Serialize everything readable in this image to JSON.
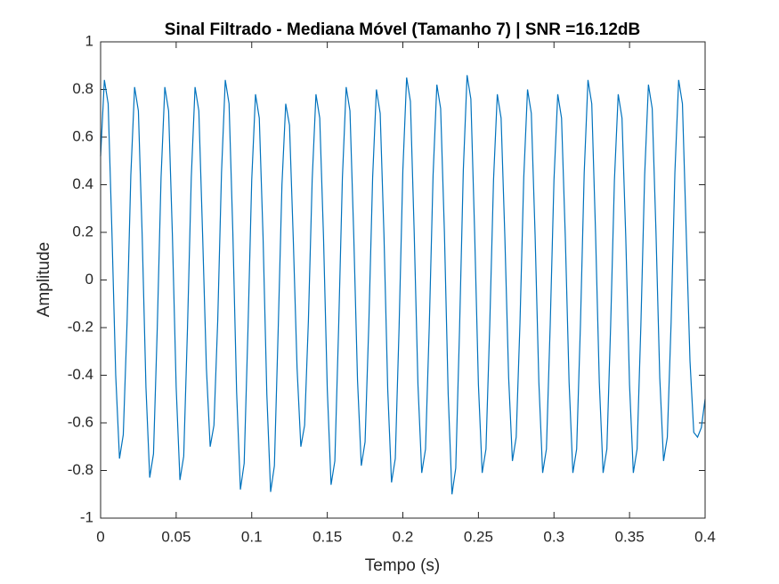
{
  "chart_data": {
    "type": "line",
    "title": "Sinal Filtrado - Mediana Móvel (Tamanho 7) | SNR =16.12dB",
    "xlabel": "Tempo (s)",
    "ylabel": "Amplitude",
    "xlim": [
      0,
      0.4
    ],
    "ylim": [
      -1,
      1
    ],
    "xticks": [
      0,
      0.05,
      0.1,
      0.15,
      0.2,
      0.25,
      0.3,
      0.35,
      0.4
    ],
    "yticks": [
      -1,
      -0.8,
      -0.6,
      -0.4,
      -0.2,
      0,
      0.2,
      0.4,
      0.6,
      0.8,
      1
    ],
    "grid": false,
    "series": [
      {
        "color": "#0072bd",
        "x": [
          0,
          0.0025,
          0.005,
          0.0075,
          0.01,
          0.0125,
          0.015,
          0.0175,
          0.02,
          0.0225,
          0.025,
          0.0275,
          0.03,
          0.0325,
          0.035,
          0.0375,
          0.04,
          0.0425,
          0.045,
          0.0475,
          0.05,
          0.0525,
          0.055,
          0.0575,
          0.06,
          0.0625,
          0.065,
          0.0675,
          0.07,
          0.0725,
          0.075,
          0.0775,
          0.08,
          0.0825,
          0.085,
          0.0875,
          0.09,
          0.0925,
          0.095,
          0.0975,
          0.1,
          0.1025,
          0.105,
          0.1075,
          0.11,
          0.1125,
          0.115,
          0.1175,
          0.12,
          0.1225,
          0.125,
          0.1275,
          0.13,
          0.1325,
          0.135,
          0.1375,
          0.14,
          0.1425,
          0.145,
          0.1475,
          0.15,
          0.1525,
          0.155,
          0.1575,
          0.16,
          0.1625,
          0.165,
          0.1675,
          0.17,
          0.1725,
          0.175,
          0.1775,
          0.18,
          0.1825,
          0.185,
          0.1875,
          0.19,
          0.1925,
          0.195,
          0.1975,
          0.2,
          0.2025,
          0.205,
          0.2075,
          0.21,
          0.2125,
          0.215,
          0.2175,
          0.22,
          0.2225,
          0.225,
          0.2275,
          0.23,
          0.2325,
          0.235,
          0.2375,
          0.24,
          0.2425,
          0.245,
          0.2475,
          0.25,
          0.2525,
          0.255,
          0.2575,
          0.26,
          0.2625,
          0.265,
          0.2675,
          0.27,
          0.2725,
          0.275,
          0.2775,
          0.28,
          0.2825,
          0.285,
          0.2875,
          0.29,
          0.2925,
          0.295,
          0.2975,
          0.3,
          0.3025,
          0.305,
          0.3075,
          0.31,
          0.3125,
          0.315,
          0.3175,
          0.32,
          0.3225,
          0.325,
          0.3275,
          0.33,
          0.3325,
          0.335,
          0.3375,
          0.34,
          0.3425,
          0.345,
          0.3475,
          0.35,
          0.3525,
          0.355,
          0.3575,
          0.36,
          0.3625,
          0.365,
          0.3675,
          0.37,
          0.3725,
          0.375,
          0.3775,
          0.38,
          0.3825,
          0.385,
          0.3875,
          0.39,
          0.3925,
          0.395,
          0.3975,
          0.4
        ],
        "values": [
          0.52,
          0.84,
          0.74,
          0.2,
          -0.4,
          -0.75,
          -0.65,
          -0.18,
          0.44,
          0.81,
          0.71,
          0.19,
          -0.45,
          -0.83,
          -0.73,
          -0.2,
          0.43,
          0.81,
          0.71,
          0.19,
          -0.45,
          -0.84,
          -0.74,
          -0.2,
          0.43,
          0.81,
          0.71,
          0.19,
          -0.37,
          -0.7,
          -0.61,
          -0.17,
          0.45,
          0.84,
          0.74,
          0.2,
          -0.47,
          -0.88,
          -0.77,
          -0.21,
          0.42,
          0.78,
          0.68,
          0.18,
          -0.48,
          -0.89,
          -0.78,
          -0.21,
          0.4,
          0.74,
          0.65,
          0.17,
          -0.37,
          -0.7,
          -0.61,
          -0.17,
          0.42,
          0.78,
          0.68,
          0.18,
          -0.46,
          -0.86,
          -0.76,
          -0.2,
          0.43,
          0.81,
          0.71,
          0.19,
          -0.42,
          -0.78,
          -0.68,
          -0.18,
          0.43,
          0.8,
          0.7,
          0.19,
          -0.46,
          -0.85,
          -0.75,
          -0.2,
          0.46,
          0.85,
          0.75,
          0.2,
          -0.44,
          -0.81,
          -0.71,
          -0.19,
          0.44,
          0.82,
          0.72,
          0.2,
          -0.48,
          -0.9,
          -0.79,
          -0.21,
          0.46,
          0.86,
          0.76,
          0.2,
          -0.44,
          -0.81,
          -0.71,
          -0.19,
          0.42,
          0.78,
          0.68,
          0.18,
          -0.41,
          -0.76,
          -0.66,
          -0.18,
          0.43,
          0.8,
          0.7,
          0.19,
          -0.43,
          -0.81,
          -0.71,
          -0.19,
          0.42,
          0.78,
          0.68,
          0.18,
          -0.43,
          -0.81,
          -0.71,
          -0.19,
          0.45,
          0.84,
          0.74,
          0.2,
          -0.43,
          -0.81,
          -0.71,
          -0.19,
          0.42,
          0.78,
          0.68,
          0.18,
          -0.44,
          -0.81,
          -0.71,
          -0.19,
          0.44,
          0.82,
          0.72,
          0.2,
          -0.41,
          -0.76,
          -0.66,
          -0.18,
          0.45,
          0.84,
          0.74,
          0.2,
          -0.34,
          -0.64,
          -0.66,
          -0.62,
          -0.5
        ]
      }
    ]
  }
}
